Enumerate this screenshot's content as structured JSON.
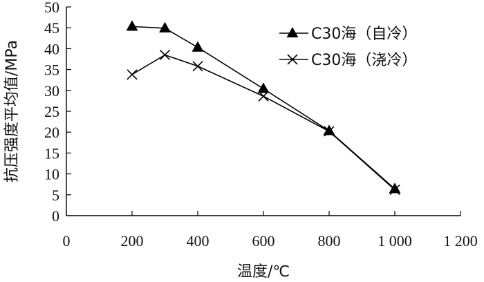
{
  "chart_data": {
    "type": "line",
    "title": "",
    "xlabel": "温度/℃",
    "ylabel": "抗压强度平均值/MPa",
    "xlim": [
      0,
      1200
    ],
    "ylim": [
      0,
      50
    ],
    "x_ticks": [
      0,
      200,
      400,
      600,
      800,
      1000,
      1200
    ],
    "x_tick_labels": [
      "0",
      "200",
      "400",
      "600",
      "800",
      "1 000",
      "1 200"
    ],
    "y_ticks": [
      0,
      5,
      10,
      15,
      20,
      25,
      30,
      35,
      40,
      45,
      50
    ],
    "y_tick_labels": [
      "0",
      "5",
      "10",
      "15",
      "20",
      "25",
      "30",
      "35",
      "40",
      "45",
      "50"
    ],
    "grid": false,
    "legend_position": "top-right",
    "series": [
      {
        "name": "C30海（自冷）",
        "marker": "triangle",
        "x": [
          200,
          300,
          400,
          600,
          800,
          1000
        ],
        "values": [
          45.3,
          44.9,
          40.3,
          30.4,
          20.3,
          6.4
        ]
      },
      {
        "name": "C30海（浇冷）",
        "marker": "cross",
        "x": [
          200,
          300,
          400,
          600,
          800,
          1000
        ],
        "values": [
          33.8,
          38.5,
          35.8,
          28.6,
          20.2,
          6.2
        ]
      }
    ]
  }
}
